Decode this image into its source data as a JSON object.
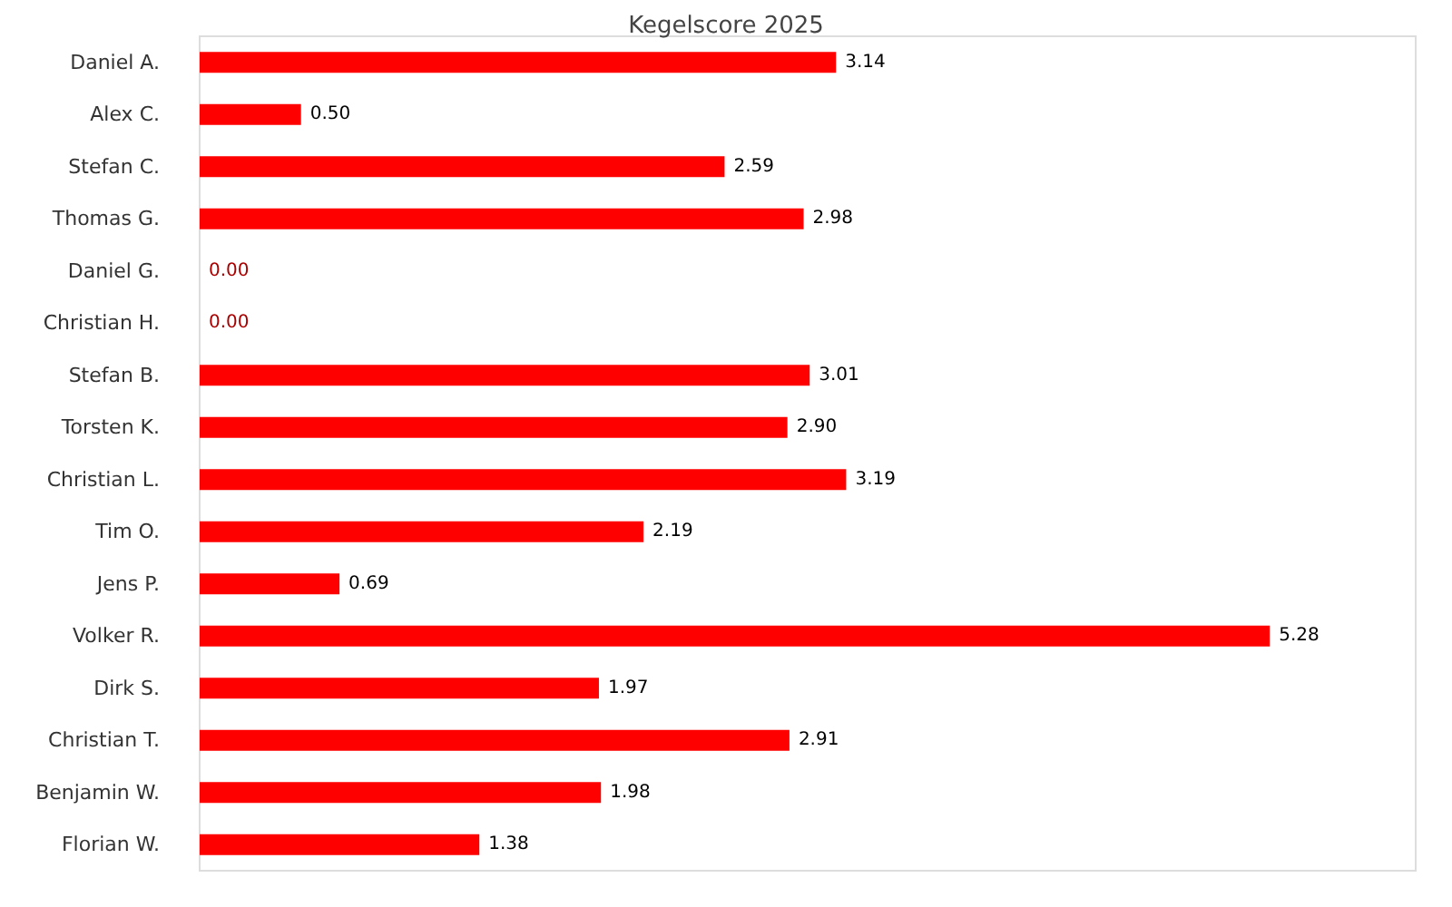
{
  "chart_data": {
    "type": "bar",
    "orientation": "horizontal",
    "title": "Kegelscore 2025",
    "categories": [
      "Daniel A.",
      "Alex C.",
      "Stefan C.",
      "Thomas G.",
      "Daniel G.",
      "Christian H.",
      "Stefan B.",
      "Torsten K.",
      "Christian L.",
      "Tim O.",
      "Jens P.",
      "Volker R.",
      "Dirk S.",
      "Christian T.",
      "Benjamin W.",
      "Florian W."
    ],
    "values": [
      3.14,
      0.5,
      2.59,
      2.98,
      0.0,
      0.0,
      3.01,
      2.9,
      3.19,
      2.19,
      0.69,
      5.28,
      1.97,
      2.91,
      1.98,
      1.38
    ],
    "value_labels": [
      "3.14",
      "0.50",
      "2.59",
      "2.98",
      "0.00",
      "0.00",
      "3.01",
      "2.90",
      "3.19",
      "2.19",
      "0.69",
      "5.28",
      "1.97",
      "2.91",
      "1.98",
      "1.38"
    ],
    "color": "#ff0000",
    "xlim": [
      0,
      6
    ],
    "tick_labels": "y"
  }
}
